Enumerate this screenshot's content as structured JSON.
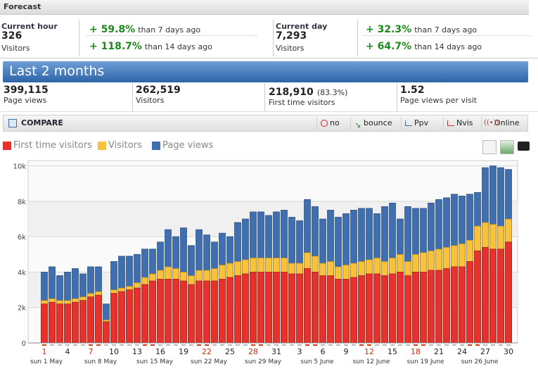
{
  "header": {
    "title": "Forecast"
  },
  "current_hour": {
    "label": "Current hour",
    "value": "326",
    "unit": "Visitors",
    "comparisons": [
      {
        "change": "+ 59.8%",
        "note": "than 7 days ago"
      },
      {
        "change": "+ 118.7%",
        "note": "than 14 days ago"
      }
    ]
  },
  "current_day": {
    "label": "Current day",
    "value": "7,293",
    "unit": "Visitors",
    "comparisons": [
      {
        "change": "+ 32.3%",
        "note": "than 7 days ago"
      },
      {
        "change": "+ 64.7%",
        "note": "than 14 days ago"
      }
    ]
  },
  "period": {
    "title": "Last 2 months"
  },
  "stats": [
    {
      "value": "399,115",
      "label": "Page views"
    },
    {
      "value": "262,519",
      "label": "Visitors"
    },
    {
      "value": "218,910",
      "extra": "(83.3%)",
      "label": "First time visitors"
    },
    {
      "value": "1.52",
      "label": "Page views per visit"
    }
  ],
  "toolbar": {
    "title": "COMPARE",
    "buttons": [
      "no",
      "bounce",
      "Ppv",
      "Nvis",
      "Online"
    ]
  },
  "chart_data": {
    "type": "bar",
    "ylim": [
      0,
      10300
    ],
    "yticks": [
      0,
      {
        "value": 2000,
        "label": "2k"
      },
      {
        "value": 4000,
        "label": "4k"
      },
      {
        "value": 6000,
        "label": "6k"
      },
      {
        "value": 8000,
        "label": "8k"
      },
      {
        "value": 10000,
        "label": "10k"
      }
    ],
    "grid": true,
    "categories": [
      "1",
      null,
      null,
      "4",
      null,
      null,
      "7",
      null,
      null,
      "10",
      null,
      null,
      "13",
      null,
      null,
      "16",
      null,
      null,
      "19",
      null,
      null,
      "22",
      null,
      null,
      "25",
      null,
      null,
      "28",
      null,
      null,
      "31",
      null,
      null,
      "3",
      null,
      null,
      "6",
      null,
      null,
      "9",
      null,
      null,
      "12",
      null,
      null,
      "15",
      null,
      null,
      "18",
      null,
      null,
      "21",
      null,
      null,
      "24",
      null,
      null,
      "27",
      null,
      null,
      "30"
    ],
    "week_labels": [
      "sun 1 May",
      null,
      null,
      null,
      null,
      null,
      null,
      "sun 8 May",
      null,
      null,
      null,
      null,
      null,
      null,
      "sun 15 May",
      null,
      null,
      null,
      null,
      null,
      null,
      "sun 22 May",
      null,
      null,
      null,
      null,
      null,
      null,
      "sun 29 May",
      null,
      null,
      null,
      null,
      null,
      null,
      "sun 5 June",
      null,
      null,
      null,
      null,
      null,
      null,
      "sun 12 June",
      null,
      null,
      null,
      null,
      null,
      null,
      "sun 19 June",
      null,
      null,
      null,
      null,
      null,
      null,
      "sun 26 June",
      null,
      null,
      null,
      null
    ],
    "series": [
      {
        "name": "First time visitors",
        "color": "#e8302c",
        "values": [
          2200,
          2300,
          2200,
          2200,
          2300,
          2400,
          2600,
          2700,
          1200,
          2800,
          2900,
          3000,
          3100,
          3300,
          3500,
          3600,
          3600,
          3600,
          3500,
          3300,
          3500,
          3500,
          3500,
          3600,
          3700,
          3800,
          3900,
          4000,
          4000,
          4000,
          4000,
          4000,
          3900,
          3900,
          4200,
          4000,
          3800,
          3800,
          3600,
          3600,
          3700,
          3800,
          3900,
          3900,
          3800,
          3900,
          4000,
          3800,
          4000,
          4000,
          4100,
          4100,
          4200,
          4300,
          4300,
          4600,
          5200,
          5400,
          5300,
          5300,
          5700
        ]
      },
      {
        "name": "Visitors",
        "color": "#f8c23c",
        "values": [
          2400,
          2500,
          2400,
          2400,
          2500,
          2600,
          2800,
          2900,
          1300,
          3000,
          3100,
          3200,
          3400,
          3700,
          3900,
          4100,
          4300,
          4200,
          4000,
          3800,
          4100,
          4100,
          4200,
          4400,
          4500,
          4600,
          4700,
          4800,
          4800,
          4800,
          4800,
          4800,
          4500,
          4500,
          5100,
          4900,
          4500,
          4600,
          4300,
          4400,
          4500,
          4600,
          4700,
          4800,
          4600,
          4800,
          5000,
          4600,
          5000,
          5100,
          5200,
          5300,
          5400,
          5500,
          5600,
          5800,
          6600,
          6800,
          6700,
          6600,
          7000
        ]
      },
      {
        "name": "Page views",
        "color": "#3f6faf",
        "values": [
          4000,
          4300,
          3800,
          4000,
          4200,
          3900,
          4300,
          4300,
          2200,
          4600,
          4900,
          4900,
          5000,
          5300,
          5300,
          5700,
          6400,
          6000,
          6500,
          5500,
          6400,
          6100,
          5700,
          6200,
          6000,
          6800,
          7000,
          7400,
          7400,
          7200,
          7400,
          7500,
          7100,
          6900,
          8100,
          7700,
          7000,
          7500,
          7100,
          7300,
          7500,
          7600,
          7600,
          7300,
          7700,
          7900,
          7000,
          7700,
          7600,
          7600,
          7900,
          8100,
          8200,
          8400,
          8300,
          8400,
          8500,
          9900,
          10000,
          9900,
          9800
        ]
      }
    ]
  }
}
